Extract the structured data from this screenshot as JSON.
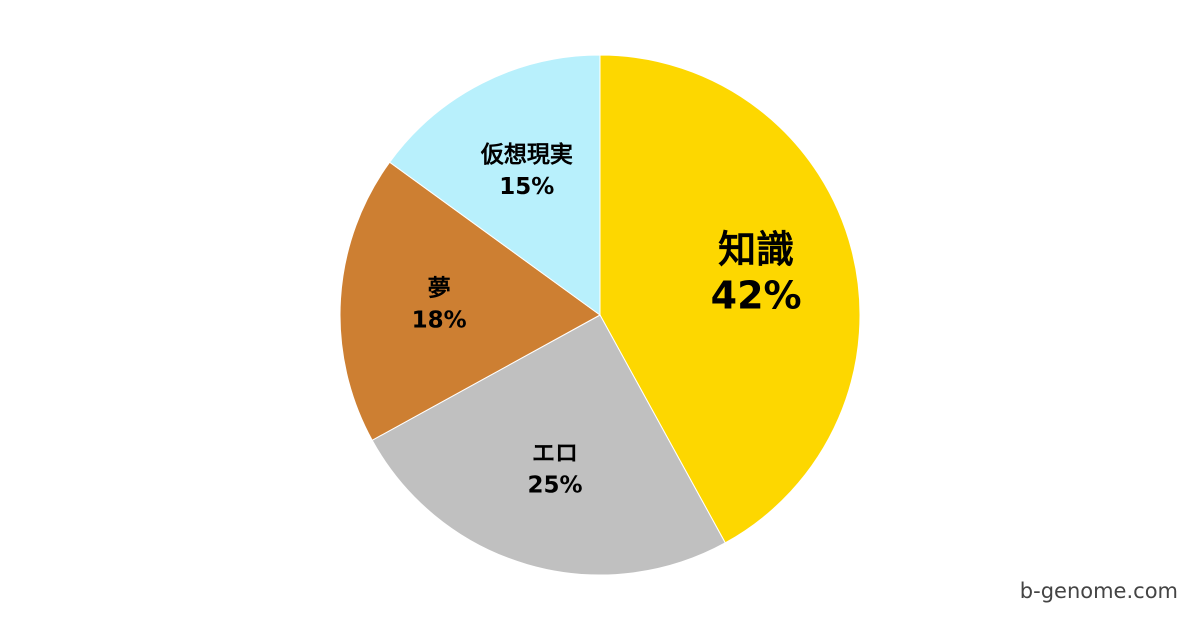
{
  "chart_data": {
    "type": "pie",
    "categories": [
      "知識",
      "エロ",
      "夢",
      "仮想現実"
    ],
    "values": [
      42,
      25,
      18,
      15
    ],
    "value_labels": [
      "42%",
      "25%",
      "18%",
      "15%"
    ],
    "colors": [
      "#fdd700",
      "#c0c0c0",
      "#cd7f32",
      "#b8f0fc"
    ],
    "footer": "b-genome.com"
  }
}
